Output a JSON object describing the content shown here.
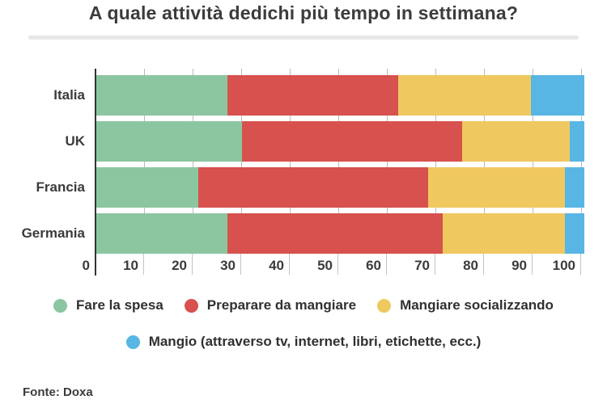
{
  "title": "A quale attività dedichi più tempo in settimana?",
  "source": "Fonte: Doxa",
  "chart_data": {
    "type": "bar",
    "stacked": true,
    "orientation": "horizontal",
    "unit": "percent",
    "title": "A quale attività dedichi più tempo in settimana?",
    "categories": [
      "Italia",
      "UK",
      "Francia",
      "Germania"
    ],
    "series": [
      {
        "name": "Fare la spesa",
        "color": "#8cc6a1",
        "values": [
          27,
          30,
          21,
          27
        ]
      },
      {
        "name": "Preparare da mangiare",
        "color": "#d7514e",
        "values": [
          35,
          45,
          47,
          44
        ]
      },
      {
        "name": "Mangiare socializzando",
        "color": "#f0c860",
        "values": [
          27,
          22,
          28,
          25
        ]
      },
      {
        "name": "Mangio (attraverso tv, internet, libri, etichette, ecc.)",
        "color": "#58b6e4",
        "values": [
          11,
          3,
          4,
          4
        ]
      }
    ],
    "xlim": [
      0,
      100
    ],
    "x_ticks": [
      0,
      10,
      20,
      30,
      40,
      50,
      60,
      70,
      80,
      90,
      100
    ],
    "xlabel": "",
    "ylabel": "",
    "legend_position": "bottom",
    "legend_rows": [
      [
        0,
        1,
        2
      ],
      [
        3
      ]
    ],
    "grid": "ticks-only"
  }
}
